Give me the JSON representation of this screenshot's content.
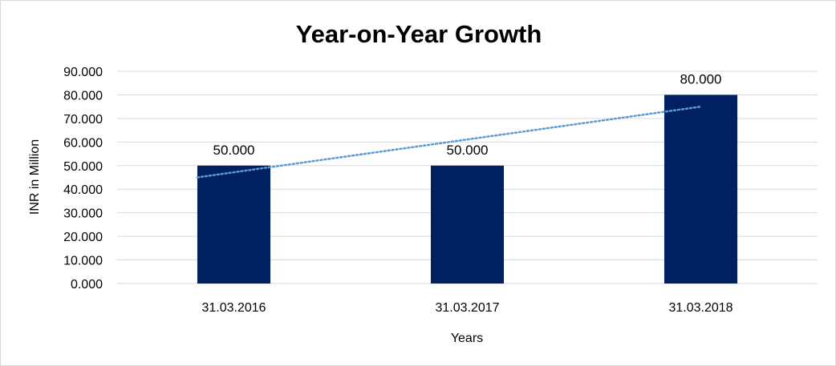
{
  "chart_data": {
    "type": "bar",
    "title": "Year-on-Year Growth",
    "xlabel": "Years",
    "ylabel": "INR in Million",
    "categories": [
      "31.03.2016",
      "31.03.2017",
      "31.03.2018"
    ],
    "values": [
      50,
      50,
      80
    ],
    "data_labels": [
      "50.000",
      "50.000",
      "80.000"
    ],
    "ylim": [
      0,
      90
    ],
    "y_ticks": [
      0,
      10,
      20,
      30,
      40,
      50,
      60,
      70,
      80,
      90
    ],
    "y_tick_labels": [
      "0.000",
      "10.000",
      "20.000",
      "30.000",
      "40.000",
      "50.000",
      "60.000",
      "70.000",
      "80.000",
      "90.000"
    ],
    "grid": true,
    "legend": "none",
    "trendline": {
      "type": "linear",
      "style": "dotted",
      "color": "#5b9bd5"
    },
    "bar_color": "#002060",
    "grid_color": "#d9d9d9"
  }
}
